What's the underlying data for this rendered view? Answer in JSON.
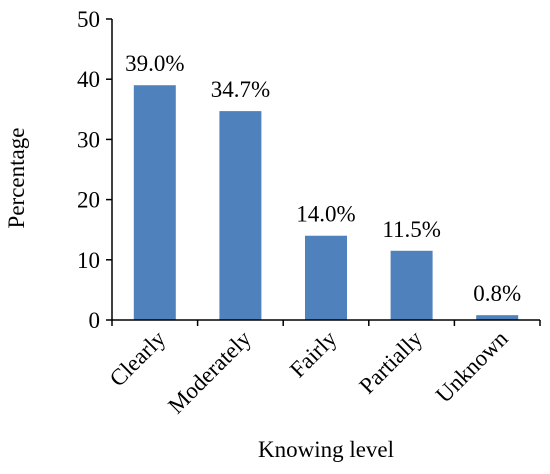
{
  "chart_data": {
    "type": "bar",
    "title": "",
    "xlabel": "Knowing level",
    "ylabel": "Percentage",
    "categories": [
      "Clearly",
      "Moderately",
      "Fairly",
      "Partially",
      "Unknown"
    ],
    "values": [
      39.0,
      34.7,
      14.0,
      11.5,
      0.8
    ],
    "data_labels": [
      "39.0%",
      "34.7%",
      "14.0%",
      "11.5%",
      "0.8%"
    ],
    "ylim": [
      0,
      50
    ],
    "yticks": [
      0,
      10,
      20,
      30,
      40,
      50
    ],
    "ytick_labels": [
      "0",
      "10",
      "20",
      "30",
      "40",
      "50"
    ],
    "grid": false,
    "legend": "none",
    "bar_color": "#4f81bd",
    "axis_color": "#000000"
  }
}
